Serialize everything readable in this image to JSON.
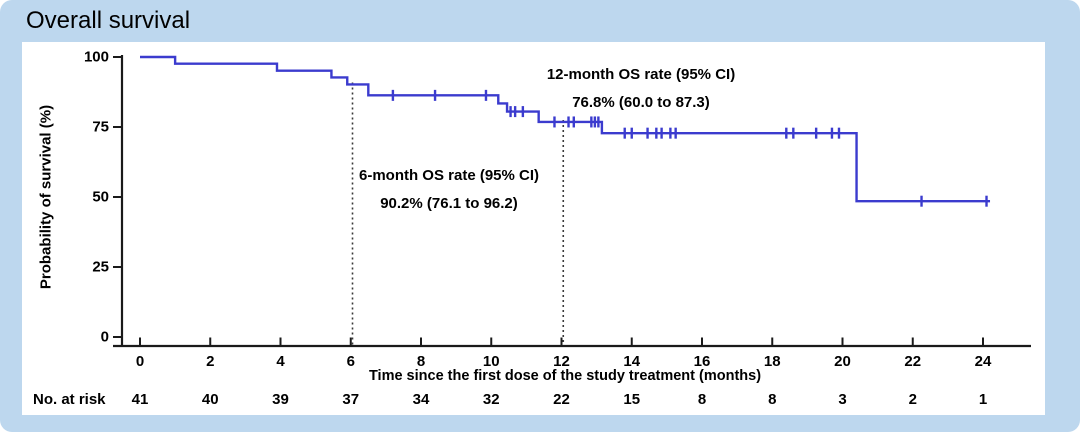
{
  "title": "Overall survival",
  "colors": {
    "frame": "#BDD7EE",
    "panel": "#FFFFFF",
    "curve": "#3B3BCE",
    "axis": "#1A1A1A",
    "dotted": "#3A3A3A",
    "text": "#000000"
  },
  "chart_data": {
    "type": "line",
    "subtype": "kaplan_meier_step",
    "title": "Overall survival",
    "xlabel": "Time since the first dose of the study treatment (months)",
    "ylabel": "Probability of survival (%)",
    "xlim": [
      0,
      25.3
    ],
    "ylim": [
      0,
      100
    ],
    "x_ticks": [
      0,
      2,
      4,
      6,
      8,
      10,
      12,
      14,
      16,
      18,
      20,
      22,
      24
    ],
    "y_ticks": [
      0,
      25,
      50,
      75,
      100
    ],
    "grid": false,
    "legend": "none",
    "series": [
      {
        "name": "Overall survival",
        "color": "#3B3BCE",
        "steps": [
          [
            0,
            100
          ],
          [
            1.0,
            97.6
          ],
          [
            3.9,
            95.1
          ],
          [
            5.45,
            92.7
          ],
          [
            5.9,
            90.2
          ],
          [
            6.5,
            86.3
          ],
          [
            10.2,
            83.4
          ],
          [
            10.45,
            80.5
          ],
          [
            11.35,
            76.8
          ],
          [
            13.15,
            72.8
          ],
          [
            20.4,
            48.5
          ]
        ],
        "end_x": 24.2,
        "censors": [
          [
            7.2,
            86.3
          ],
          [
            8.4,
            86.3
          ],
          [
            9.85,
            86.3
          ],
          [
            10.55,
            80.5
          ],
          [
            10.68,
            80.5
          ],
          [
            10.9,
            80.5
          ],
          [
            11.8,
            76.8
          ],
          [
            12.2,
            76.8
          ],
          [
            12.35,
            76.8
          ],
          [
            12.85,
            76.8
          ],
          [
            12.95,
            76.8
          ],
          [
            13.05,
            76.8
          ],
          [
            13.8,
            72.8
          ],
          [
            14.0,
            72.8
          ],
          [
            14.45,
            72.8
          ],
          [
            14.7,
            72.8
          ],
          [
            14.85,
            72.8
          ],
          [
            15.1,
            72.8
          ],
          [
            15.25,
            72.8
          ],
          [
            18.4,
            72.8
          ],
          [
            18.6,
            72.8
          ],
          [
            19.25,
            72.8
          ],
          [
            19.7,
            72.8
          ],
          [
            19.9,
            72.8
          ],
          [
            22.25,
            48.5
          ],
          [
            24.1,
            48.5
          ]
        ]
      }
    ],
    "reference_lines": [
      {
        "x": 6.05,
        "style": "dotted"
      },
      {
        "x": 12.05,
        "style": "dotted"
      }
    ],
    "annotations": [
      {
        "name": "six_month_os",
        "lines": [
          "6-month OS rate (95% CI)",
          "90.2% (76.1 to 96.2)"
        ]
      },
      {
        "name": "twelve_month_os",
        "lines": [
          "12-month OS rate (95% CI)",
          "76.8% (60.0 to 87.3)"
        ]
      }
    ],
    "at_risk": {
      "label": "No. at risk",
      "times": [
        0,
        2,
        4,
        6,
        8,
        10,
        12,
        14,
        16,
        18,
        20,
        22,
        24
      ],
      "values": [
        41,
        40,
        39,
        37,
        34,
        32,
        22,
        15,
        8,
        8,
        3,
        2,
        1
      ]
    }
  }
}
